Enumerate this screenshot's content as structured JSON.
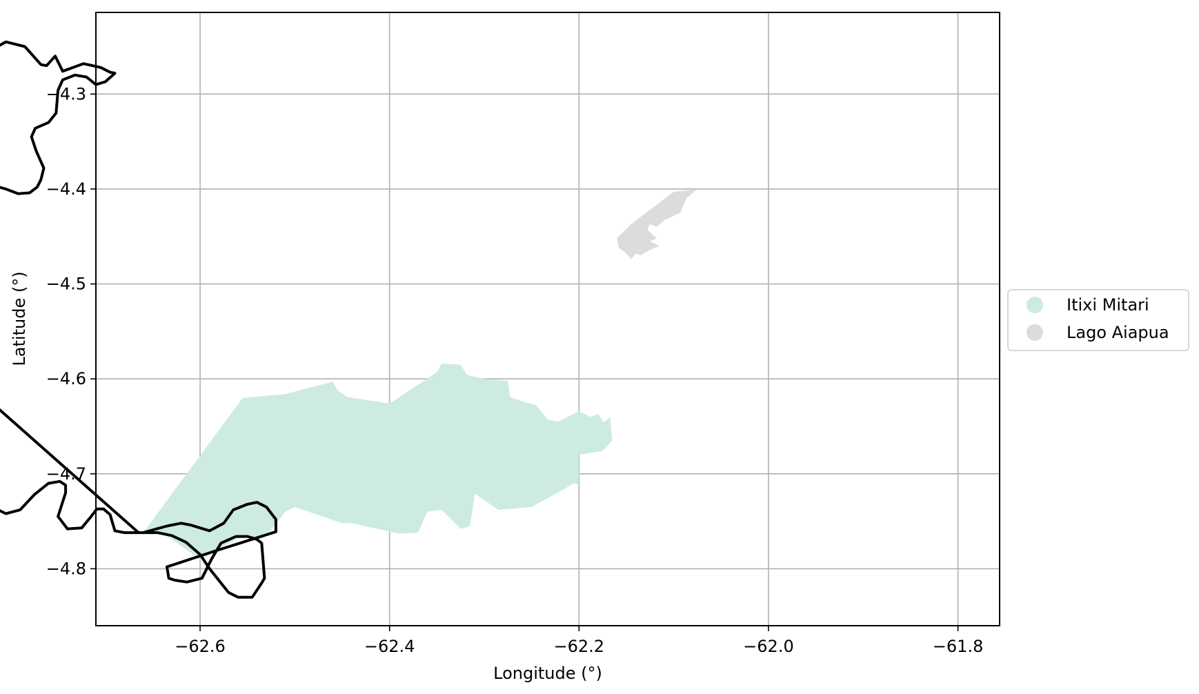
{
  "chart_data": {
    "type": "map",
    "xlabel": "Longitude (°)",
    "ylabel": "Latitude (°)",
    "xlim": [
      -62.71,
      -61.756
    ],
    "ylim": [
      -4.86,
      -4.214
    ],
    "grid": true,
    "x_ticks": [
      {
        "value": -62.6,
        "label": "−62.6"
      },
      {
        "value": -62.4,
        "label": "−62.4"
      },
      {
        "value": -62.2,
        "label": "−62.2"
      },
      {
        "value": -62.0,
        "label": "−62.0"
      },
      {
        "value": -61.8,
        "label": "−61.8"
      }
    ],
    "y_ticks": [
      {
        "value": -4.3,
        "label": "−4.3"
      },
      {
        "value": -4.4,
        "label": "−4.4"
      },
      {
        "value": -4.5,
        "label": "−4.5"
      },
      {
        "value": -4.6,
        "label": "−4.6"
      },
      {
        "value": -4.7,
        "label": "−4.7"
      },
      {
        "value": -4.8,
        "label": "−4.8"
      }
    ],
    "legend": {
      "placement": "center-right-outside",
      "entries": [
        {
          "name": "Itixi Mitari",
          "color": "#ceebdf"
        },
        {
          "name": "Lago Aiapua",
          "color": "#dcdcdc"
        }
      ]
    },
    "regions": [
      {
        "name": "Itixi Mitari",
        "color": "#ceebdf",
        "coords": [
          [
            -62.66,
            -4.762
          ],
          [
            -62.555,
            -4.62
          ],
          [
            -62.51,
            -4.616
          ],
          [
            -62.46,
            -4.603
          ],
          [
            -62.455,
            -4.612
          ],
          [
            -62.445,
            -4.619
          ],
          [
            -62.4,
            -4.626
          ],
          [
            -62.35,
            -4.593
          ],
          [
            -62.345,
            -4.584
          ],
          [
            -62.325,
            -4.585
          ],
          [
            -62.318,
            -4.596
          ],
          [
            -62.3,
            -4.6
          ],
          [
            -62.275,
            -4.602
          ],
          [
            -62.273,
            -4.619
          ],
          [
            -62.262,
            -4.623
          ],
          [
            -62.245,
            -4.628
          ],
          [
            -62.233,
            -4.643
          ],
          [
            -62.222,
            -4.645
          ],
          [
            -62.2,
            -4.634
          ],
          [
            -62.188,
            -4.64
          ],
          [
            -62.18,
            -4.637
          ],
          [
            -62.174,
            -4.646
          ],
          [
            -62.167,
            -4.64
          ],
          [
            -62.165,
            -4.665
          ],
          [
            -62.175,
            -4.676
          ],
          [
            -62.2,
            -4.68
          ],
          [
            -62.2,
            -4.712
          ],
          [
            -62.205,
            -4.71
          ],
          [
            -62.25,
            -4.735
          ],
          [
            -62.285,
            -4.738
          ],
          [
            -62.31,
            -4.721
          ],
          [
            -62.315,
            -4.755
          ],
          [
            -62.325,
            -4.758
          ],
          [
            -62.345,
            -4.738
          ],
          [
            -62.36,
            -4.74
          ],
          [
            -62.37,
            -4.762
          ],
          [
            -62.39,
            -4.763
          ],
          [
            -62.44,
            -4.752
          ],
          [
            -62.45,
            -4.752
          ],
          [
            -62.5,
            -4.735
          ],
          [
            -62.51,
            -4.74
          ],
          [
            -62.53,
            -4.765
          ],
          [
            -62.56,
            -4.768
          ],
          [
            -62.6,
            -4.79
          ],
          [
            -62.64,
            -4.762
          ]
        ]
      },
      {
        "name": "Lago Aiapua",
        "color": "#dcdcdc",
        "coords": [
          [
            -62.16,
            -4.452
          ],
          [
            -62.145,
            -4.437
          ],
          [
            -62.1,
            -4.403
          ],
          [
            -62.075,
            -4.4
          ],
          [
            -62.087,
            -4.41
          ],
          [
            -62.093,
            -4.425
          ],
          [
            -62.11,
            -4.433
          ],
          [
            -62.118,
            -4.44
          ],
          [
            -62.125,
            -4.437
          ],
          [
            -62.128,
            -4.443
          ],
          [
            -62.118,
            -4.452
          ],
          [
            -62.125,
            -4.455
          ],
          [
            -62.115,
            -4.46
          ],
          [
            -62.127,
            -4.465
          ],
          [
            -62.135,
            -4.47
          ],
          [
            -62.14,
            -4.468
          ],
          [
            -62.145,
            -4.474
          ],
          [
            -62.15,
            -4.468
          ],
          [
            -62.158,
            -4.462
          ]
        ]
      }
    ],
    "boundary": {
      "color": "#000000",
      "coords": [
        [
          -62.665,
          -4.762
        ],
        [
          -62.645,
          -4.762
        ],
        [
          -62.63,
          -4.765
        ],
        [
          -62.615,
          -4.772
        ],
        [
          -62.6,
          -4.785
        ],
        [
          -62.59,
          -4.8
        ],
        [
          -62.57,
          -4.825
        ],
        [
          -62.56,
          -4.83
        ],
        [
          -62.545,
          -4.83
        ],
        [
          -62.535,
          -4.815
        ],
        [
          -62.532,
          -4.81
        ],
        [
          -62.535,
          -4.773
        ],
        [
          -62.54,
          -4.769
        ],
        [
          -62.55,
          -4.766
        ],
        [
          -62.562,
          -4.766
        ],
        [
          -62.578,
          -4.773
        ],
        [
          -62.588,
          -4.79
        ],
        [
          -62.598,
          -4.81
        ],
        [
          -62.614,
          -4.814
        ],
        [
          -62.627,
          -4.812
        ],
        [
          -62.633,
          -4.81
        ],
        [
          -62.635,
          -4.798
        ],
        [
          -62.58,
          -4.78
        ],
        [
          -62.52,
          -4.761
        ],
        [
          -62.52,
          -4.748
        ],
        [
          -62.53,
          -4.735
        ],
        [
          -62.54,
          -4.73
        ],
        [
          -62.55,
          -4.732
        ],
        [
          -62.565,
          -4.738
        ],
        [
          -62.575,
          -4.752
        ],
        [
          -62.59,
          -4.76
        ],
        [
          -62.61,
          -4.754
        ],
        [
          -62.62,
          -4.752
        ],
        [
          -62.635,
          -4.755
        ],
        [
          -62.66,
          -4.762
        ],
        [
          -62.68,
          -4.762
        ],
        [
          -62.69,
          -4.76
        ],
        [
          -62.695,
          -4.743
        ],
        [
          -62.702,
          -4.737
        ],
        [
          -62.709,
          -4.737
        ],
        [
          -62.715,
          -4.745
        ],
        [
          -62.725,
          -4.757
        ],
        [
          -62.74,
          -4.758
        ],
        [
          -62.75,
          -4.745
        ],
        [
          -62.742,
          -4.72
        ],
        [
          -62.742,
          -4.712
        ],
        [
          -62.748,
          -4.708
        ],
        [
          -62.76,
          -4.71
        ],
        [
          -62.775,
          -4.722
        ],
        [
          -62.79,
          -4.738
        ],
        [
          -62.805,
          -4.742
        ],
        [
          -62.815,
          -4.737
        ],
        [
          -62.83,
          -4.735
        ],
        [
          -62.845,
          -4.745
        ],
        [
          -62.858,
          -4.752
        ],
        [
          -62.866,
          -4.752
        ],
        [
          -62.875,
          -4.742
        ],
        [
          -62.895,
          -4.733
        ],
        [
          -62.92,
          -4.72
        ],
        [
          -62.935,
          -4.708
        ],
        [
          -62.945,
          -4.695
        ],
        [
          -62.956,
          -4.67
        ],
        [
          -62.97,
          -4.642
        ],
        [
          -62.98,
          -4.63
        ],
        [
          -62.988,
          -4.62
        ],
        [
          -62.99,
          -4.592
        ],
        [
          -62.988,
          -4.56
        ],
        [
          -62.992,
          -4.538
        ],
        [
          -62.992,
          -4.525
        ],
        [
          -62.987,
          -4.51
        ],
        [
          -62.978,
          -4.5
        ],
        [
          -62.965,
          -4.495
        ],
        [
          -62.94,
          -4.496
        ],
        [
          -62.925,
          -4.488
        ],
        [
          -62.91,
          -4.485
        ],
        [
          -62.9,
          -4.484
        ],
        [
          -62.893,
          -4.48
        ],
        [
          -62.89,
          -4.47
        ],
        [
          -62.9,
          -4.462
        ],
        [
          -62.912,
          -4.458
        ],
        [
          -62.922,
          -4.46
        ],
        [
          -62.94,
          -4.467
        ],
        [
          -62.95,
          -4.48
        ],
        [
          -62.962,
          -4.49
        ],
        [
          -62.975,
          -4.49
        ],
        [
          -62.985,
          -4.482
        ],
        [
          -62.99,
          -4.47
        ],
        [
          -62.99,
          -4.457
        ],
        [
          -62.983,
          -4.447
        ],
        [
          -62.965,
          -4.437
        ],
        [
          -62.955,
          -4.433
        ],
        [
          -62.94,
          -4.418
        ],
        [
          -62.922,
          -4.395
        ],
        [
          -62.905,
          -4.382
        ],
        [
          -62.88,
          -4.375
        ],
        [
          -62.87,
          -4.375
        ],
        [
          -62.855,
          -4.382
        ],
        [
          -62.83,
          -4.393
        ],
        [
          -62.805,
          -4.4
        ],
        [
          -62.792,
          -4.405
        ],
        [
          -62.78,
          -4.404
        ],
        [
          -62.772,
          -4.398
        ],
        [
          -62.768,
          -4.39
        ],
        [
          -62.765,
          -4.378
        ],
        [
          -62.773,
          -4.36
        ],
        [
          -62.778,
          -4.345
        ],
        [
          -62.774,
          -4.336
        ],
        [
          -62.76,
          -4.33
        ],
        [
          -62.752,
          -4.32
        ],
        [
          -62.75,
          -4.296
        ],
        [
          -62.745,
          -4.285
        ],
        [
          -62.732,
          -4.28
        ],
        [
          -62.72,
          -4.282
        ],
        [
          -62.71,
          -4.29
        ],
        [
          -62.7,
          -4.287
        ],
        [
          -62.69,
          -4.278
        ],
        [
          -62.695,
          -4.277
        ],
        [
          -62.705,
          -4.272
        ],
        [
          -62.723,
          -4.268
        ],
        [
          -62.745,
          -4.276
        ],
        [
          -62.753,
          -4.26
        ],
        [
          -62.762,
          -4.27
        ],
        [
          -62.768,
          -4.269
        ],
        [
          -62.785,
          -4.25
        ],
        [
          -62.805,
          -4.245
        ],
        [
          -62.823,
          -4.255
        ],
        [
          -62.838,
          -4.262
        ],
        [
          -62.848,
          -4.26
        ],
        [
          -62.858,
          -4.256
        ],
        [
          -62.88,
          -4.268
        ],
        [
          -62.89,
          -4.273
        ],
        [
          -62.898,
          -4.264
        ],
        [
          -62.905,
          -4.268
        ],
        [
          -62.91,
          -4.277
        ],
        [
          -62.925,
          -4.283
        ],
        [
          -62.94,
          -4.283
        ],
        [
          -62.96,
          -4.285
        ],
        [
          -62.972,
          -4.293
        ],
        [
          -62.99,
          -4.308
        ],
        [
          -63.008,
          -4.312
        ],
        [
          -63.012,
          -4.33
        ],
        [
          -63.02,
          -4.348
        ],
        [
          -63.025,
          -4.36
        ],
        [
          -63.028,
          -4.378
        ],
        [
          -63.034,
          -4.388
        ],
        [
          -63.045,
          -4.397
        ],
        [
          -63.075,
          -4.4
        ]
      ]
    }
  }
}
